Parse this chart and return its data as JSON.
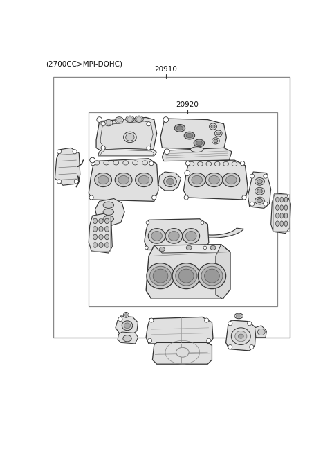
{
  "title": "(2700CC>MPI-DOHC)",
  "label_20910": "20910",
  "label_20920": "20920",
  "bg_color": "#ffffff",
  "lc_box": "#888888",
  "lc_part": "#333333",
  "fc_bg": "#ffffff",
  "fc_part": "#f0f0f0"
}
